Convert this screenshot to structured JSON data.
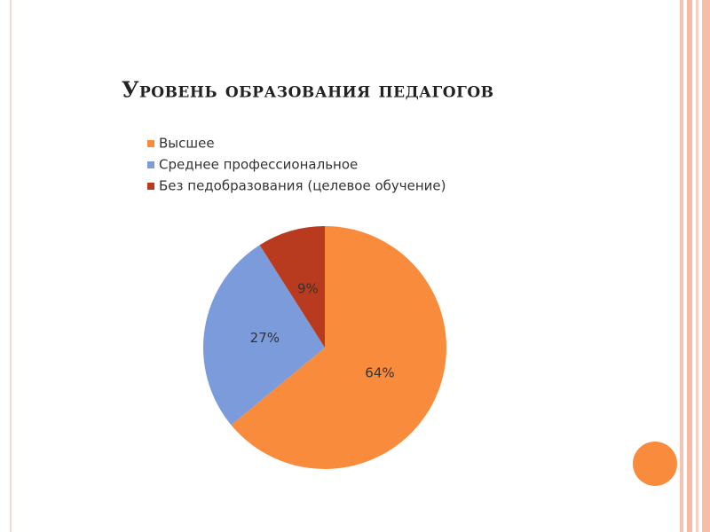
{
  "chart_data": {
    "type": "pie",
    "title": "Уровень образования педагогов",
    "categories": [
      "Высшее",
      "Среднее профессиональное",
      "Без педобразования (целевое обучение)"
    ],
    "values": [
      64,
      27,
      9
    ],
    "value_labels": [
      "64%",
      "27%",
      "9%"
    ],
    "colors": [
      "#f98b3d",
      "#7c9bdb",
      "#b83b1f"
    ],
    "legend": "top-left"
  }
}
